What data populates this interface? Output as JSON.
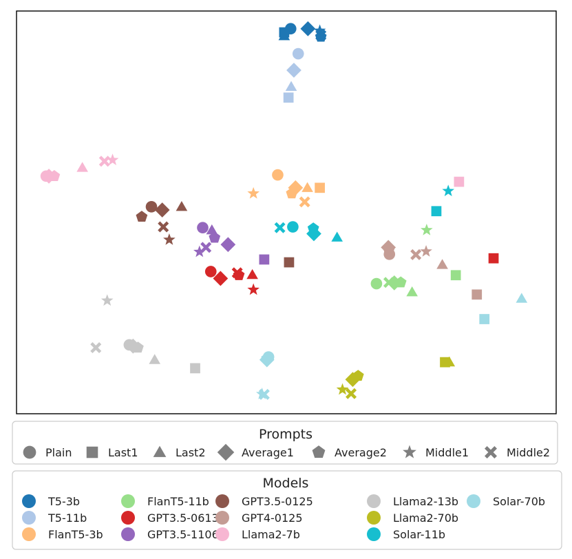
{
  "chart_data": {
    "type": "scatter",
    "title": "",
    "xlabel": "",
    "ylabel": "",
    "axes_ticks": false,
    "xlim": [
      0,
      100
    ],
    "ylim": [
      0,
      100
    ],
    "legends": {
      "prompts": {
        "title": "Prompts",
        "entries": [
          {
            "label": "Plain",
            "marker": "circle"
          },
          {
            "label": "Last1",
            "marker": "square"
          },
          {
            "label": "Last2",
            "marker": "triangle"
          },
          {
            "label": "Average1",
            "marker": "diamond"
          },
          {
            "label": "Average2",
            "marker": "pentagon"
          },
          {
            "label": "Middle1",
            "marker": "star"
          },
          {
            "label": "Middle2",
            "marker": "x"
          }
        ]
      },
      "models": {
        "title": "Models",
        "entries": [
          {
            "label": "T5-3b",
            "color": "#1f77b4"
          },
          {
            "label": "T5-11b",
            "color": "#aec7e8"
          },
          {
            "label": "FlanT5-3b",
            "color": "#ffbb78"
          },
          {
            "label": "FlanT5-11b",
            "color": "#98df8a"
          },
          {
            "label": "GPT3.5-0613",
            "color": "#d62728"
          },
          {
            "label": "GPT3.5-1106",
            "color": "#9467bd"
          },
          {
            "label": "GPT3.5-0125",
            "color": "#8c564b"
          },
          {
            "label": "GPT4-0125",
            "color": "#c49c94"
          },
          {
            "label": "Llama2-7b",
            "color": "#f7b6d2"
          },
          {
            "label": "Llama2-13b",
            "color": "#c7c7c7"
          },
          {
            "label": "Llama2-70b",
            "color": "#bcbd22"
          },
          {
            "label": "Solar-11b",
            "color": "#17becf"
          },
          {
            "label": "Solar-70b",
            "color": "#9edae5"
          }
        ]
      }
    },
    "series": [
      {
        "name": "T5-3b",
        "color": "#1f77b4",
        "points": [
          {
            "prompt": "Plain",
            "x": 50.8,
            "y": 95.6
          },
          {
            "prompt": "Last1",
            "x": 49.6,
            "y": 94.7
          },
          {
            "prompt": "Last2",
            "x": 49.6,
            "y": 93.8
          },
          {
            "prompt": "Average1",
            "x": 54.0,
            "y": 95.6
          },
          {
            "prompt": "Average2",
            "x": 56.4,
            "y": 93.6
          },
          {
            "prompt": "Middle1",
            "x": 56.2,
            "y": 95.1
          },
          {
            "prompt": "Middle2",
            "x": 56.4,
            "y": 94.0
          }
        ]
      },
      {
        "name": "T5-11b",
        "color": "#aec7e8",
        "points": [
          {
            "prompt": "Plain",
            "x": 52.2,
            "y": 89.4
          },
          {
            "prompt": "Last1",
            "x": 50.4,
            "y": 78.5
          },
          {
            "prompt": "Last2",
            "x": 50.9,
            "y": 81.2
          },
          {
            "prompt": "Average1",
            "x": 51.4,
            "y": 85.3
          }
        ]
      },
      {
        "name": "FlanT5-3b",
        "color": "#ffbb78",
        "points": [
          {
            "prompt": "Plain",
            "x": 48.4,
            "y": 59.3
          },
          {
            "prompt": "Last1",
            "x": 56.2,
            "y": 56.1
          },
          {
            "prompt": "Last2",
            "x": 53.9,
            "y": 56.1
          },
          {
            "prompt": "Average1",
            "x": 51.7,
            "y": 56.1
          },
          {
            "prompt": "Average2",
            "x": 51.0,
            "y": 54.7
          },
          {
            "prompt": "Middle1",
            "x": 43.9,
            "y": 54.7
          },
          {
            "prompt": "Middle2",
            "x": 53.4,
            "y": 52.6
          }
        ]
      },
      {
        "name": "FlanT5-11b",
        "color": "#98df8a",
        "points": [
          {
            "prompt": "Plain",
            "x": 66.7,
            "y": 32.3
          },
          {
            "prompt": "Last1",
            "x": 81.4,
            "y": 34.4
          },
          {
            "prompt": "Last2",
            "x": 73.3,
            "y": 30.2
          },
          {
            "prompt": "Average1",
            "x": 70.0,
            "y": 32.5
          },
          {
            "prompt": "Average2",
            "x": 71.2,
            "y": 32.6
          },
          {
            "prompt": "Middle1",
            "x": 76.0,
            "y": 45.6
          },
          {
            "prompt": "Middle2",
            "x": 69.0,
            "y": 32.6
          }
        ]
      },
      {
        "name": "GPT3.5-0613",
        "color": "#d62728",
        "points": [
          {
            "prompt": "Plain",
            "x": 36.0,
            "y": 35.3
          },
          {
            "prompt": "Last1",
            "x": 88.4,
            "y": 38.6
          },
          {
            "prompt": "Last2",
            "x": 43.7,
            "y": 34.5
          },
          {
            "prompt": "Average1",
            "x": 37.8,
            "y": 33.6
          },
          {
            "prompt": "Average2",
            "x": 41.2,
            "y": 34.4
          },
          {
            "prompt": "Middle1",
            "x": 43.9,
            "y": 30.8
          },
          {
            "prompt": "Middle2",
            "x": 40.9,
            "y": 35.0
          }
        ]
      },
      {
        "name": "GPT3.5-1106",
        "color": "#9467bd",
        "points": [
          {
            "prompt": "Plain",
            "x": 34.5,
            "y": 46.2
          },
          {
            "prompt": "Last1",
            "x": 45.9,
            "y": 38.3
          },
          {
            "prompt": "Last2",
            "x": 36.2,
            "y": 45.6
          },
          {
            "prompt": "Average1",
            "x": 39.2,
            "y": 42.0
          },
          {
            "prompt": "Average2",
            "x": 36.7,
            "y": 43.7
          },
          {
            "prompt": "Middle1",
            "x": 33.9,
            "y": 40.2
          },
          {
            "prompt": "Middle2",
            "x": 35.1,
            "y": 41.3
          }
        ]
      },
      {
        "name": "GPT3.5-0125",
        "color": "#8c564b",
        "points": [
          {
            "prompt": "Plain",
            "x": 25.0,
            "y": 51.4
          },
          {
            "prompt": "Last1",
            "x": 50.5,
            "y": 37.6
          },
          {
            "prompt": "Last2",
            "x": 30.6,
            "y": 51.4
          },
          {
            "prompt": "Average1",
            "x": 27.0,
            "y": 50.6
          },
          {
            "prompt": "Average2",
            "x": 23.2,
            "y": 48.9
          },
          {
            "prompt": "Middle1",
            "x": 28.3,
            "y": 43.2
          },
          {
            "prompt": "Middle2",
            "x": 27.2,
            "y": 46.4
          }
        ]
      },
      {
        "name": "GPT4-0125",
        "color": "#c49c94",
        "points": [
          {
            "prompt": "Plain",
            "x": 69.1,
            "y": 39.6
          },
          {
            "prompt": "Last1",
            "x": 85.3,
            "y": 29.6
          },
          {
            "prompt": "Last2",
            "x": 78.9,
            "y": 37.0
          },
          {
            "prompt": "Average1",
            "x": 68.9,
            "y": 41.3
          },
          {
            "prompt": "Average2",
            "x": 69.0,
            "y": 40.6
          },
          {
            "prompt": "Middle1",
            "x": 75.9,
            "y": 40.3
          },
          {
            "prompt": "Middle2",
            "x": 74.0,
            "y": 39.5
          }
        ]
      },
      {
        "name": "Llama2-7b",
        "color": "#f7b6d2",
        "points": [
          {
            "prompt": "Plain",
            "x": 5.5,
            "y": 59.0
          },
          {
            "prompt": "Last1",
            "x": 82.0,
            "y": 57.6
          },
          {
            "prompt": "Last2",
            "x": 12.2,
            "y": 61.1
          },
          {
            "prompt": "Average1",
            "x": 6.0,
            "y": 59.0
          },
          {
            "prompt": "Average2",
            "x": 7.0,
            "y": 59.0
          },
          {
            "prompt": "Middle1",
            "x": 17.8,
            "y": 63.0
          },
          {
            "prompt": "Middle2",
            "x": 16.3,
            "y": 62.7
          }
        ]
      },
      {
        "name": "Llama2-13b",
        "color": "#c7c7c7",
        "points": [
          {
            "prompt": "Plain",
            "x": 20.9,
            "y": 17.1
          },
          {
            "prompt": "Last1",
            "x": 33.1,
            "y": 11.3
          },
          {
            "prompt": "Last2",
            "x": 25.6,
            "y": 13.4
          },
          {
            "prompt": "Average1",
            "x": 21.6,
            "y": 16.8
          },
          {
            "prompt": "Average2",
            "x": 22.5,
            "y": 16.4
          },
          {
            "prompt": "Middle1",
            "x": 16.8,
            "y": 28.1
          },
          {
            "prompt": "Middle2",
            "x": 14.7,
            "y": 16.4
          }
        ]
      },
      {
        "name": "Llama2-70b",
        "color": "#bcbd22",
        "points": [
          {
            "prompt": "Last1",
            "x": 79.4,
            "y": 12.8
          },
          {
            "prompt": "Last2",
            "x": 80.2,
            "y": 12.8
          },
          {
            "prompt": "Average1",
            "x": 62.3,
            "y": 8.5
          },
          {
            "prompt": "Average2",
            "x": 63.3,
            "y": 9.4
          },
          {
            "prompt": "Middle1",
            "x": 60.4,
            "y": 6.0
          },
          {
            "prompt": "Middle2",
            "x": 62.0,
            "y": 5.0
          }
        ]
      },
      {
        "name": "Solar-11b",
        "color": "#17becf",
        "points": [
          {
            "prompt": "Plain",
            "x": 51.2,
            "y": 46.4
          },
          {
            "prompt": "Last1",
            "x": 77.8,
            "y": 50.3
          },
          {
            "prompt": "Last2",
            "x": 59.4,
            "y": 43.8
          },
          {
            "prompt": "Average1",
            "x": 55.1,
            "y": 44.7
          },
          {
            "prompt": "Average2",
            "x": 55.0,
            "y": 46.0
          },
          {
            "prompt": "Middle1",
            "x": 80.0,
            "y": 55.3
          },
          {
            "prompt": "Middle2",
            "x": 48.8,
            "y": 46.2
          }
        ]
      },
      {
        "name": "Solar-70b",
        "color": "#9edae5",
        "points": [
          {
            "prompt": "Plain",
            "x": 46.7,
            "y": 14.1
          },
          {
            "prompt": "Last1",
            "x": 86.7,
            "y": 23.5
          },
          {
            "prompt": "Last2",
            "x": 93.6,
            "y": 28.6
          },
          {
            "prompt": "Average1",
            "x": 46.4,
            "y": 13.4
          },
          {
            "prompt": "Average2",
            "x": 46.4,
            "y": 13.7
          },
          {
            "prompt": "Middle1",
            "x": 45.5,
            "y": 4.9
          },
          {
            "prompt": "Middle2",
            "x": 45.9,
            "y": 4.8
          }
        ]
      }
    ]
  }
}
